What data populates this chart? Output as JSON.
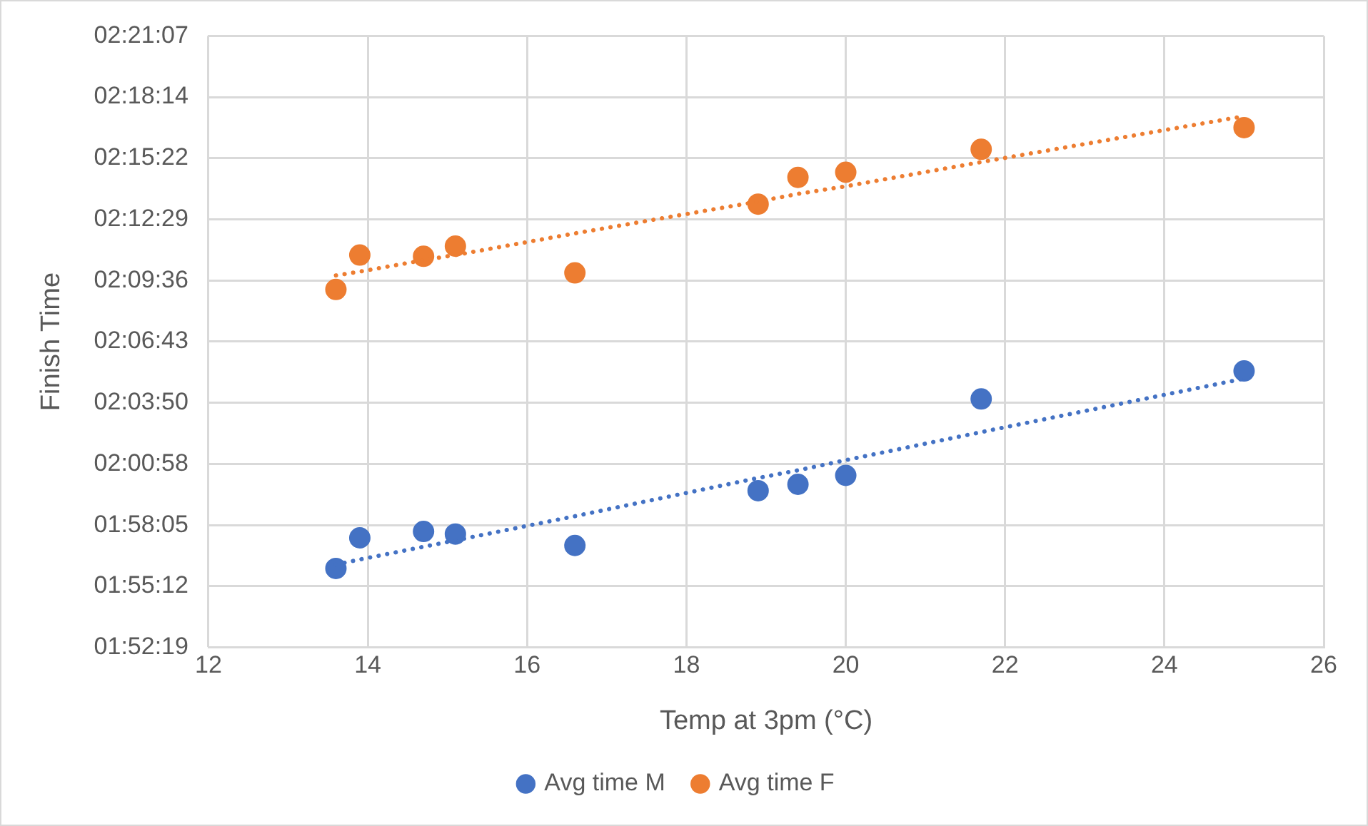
{
  "chart_data": {
    "type": "scatter",
    "xlabel": "Temp at 3pm (°C)",
    "ylabel": "Finish Time",
    "x": [
      13.6,
      13.9,
      14.7,
      15.1,
      16.6,
      18.9,
      19.4,
      20.0,
      21.7,
      25.0
    ],
    "series": [
      {
        "name": "Avg time M",
        "color": "#4472c4",
        "values": [
          1.934,
          1.958,
          1.963,
          1.961,
          1.952,
          1.995,
          2.0,
          2.007,
          2.067,
          2.089
        ]
      },
      {
        "name": "Avg time F",
        "color": "#ed7d31",
        "values": [
          2.153,
          2.18,
          2.179,
          2.187,
          2.166,
          2.22,
          2.241,
          2.245,
          2.263,
          2.28
        ]
      },
      {
        "type": "line",
        "color": "#4472c4",
        "values": [
          1.937,
          1.941,
          1.951,
          1.956,
          1.975,
          2.005,
          2.011,
          2.019,
          2.041,
          2.083
        ],
        "line_style": "dotted",
        "marker": "none"
      },
      {
        "type": "line",
        "color": "#ed7d31",
        "values": [
          2.164,
          2.167,
          2.176,
          2.18,
          2.197,
          2.222,
          2.228,
          2.234,
          2.253,
          2.289
        ],
        "line_style": "dotted",
        "marker": "none"
      }
    ],
    "xlim": [
      12,
      26
    ],
    "xticks": [
      12,
      14,
      16,
      18,
      20,
      22,
      24,
      26
    ],
    "ylim": [
      1.872,
      2.352
    ],
    "yticks": [
      {
        "value": 1.872,
        "label": "01:52:19"
      },
      {
        "value": 1.92,
        "label": "01:55:12"
      },
      {
        "value": 1.968,
        "label": "01:58:05"
      },
      {
        "value": 2.016,
        "label": "02:00:58"
      },
      {
        "value": 2.064,
        "label": "02:03:50"
      },
      {
        "value": 2.112,
        "label": "02:06:43"
      },
      {
        "value": 2.16,
        "label": "02:09:36"
      },
      {
        "value": 2.208,
        "label": "02:12:29"
      },
      {
        "value": 2.256,
        "label": "02:15:22"
      },
      {
        "value": 2.304,
        "label": "02:18:14"
      },
      {
        "value": 2.352,
        "label": "02:21:07"
      }
    ],
    "grid": true,
    "legend": "bottom",
    "marker": "circle"
  }
}
